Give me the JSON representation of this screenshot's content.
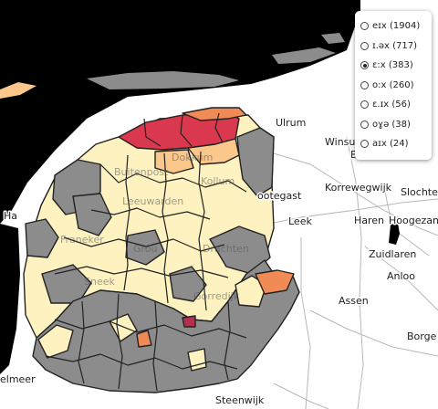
{
  "legend": {
    "items": [
      {
        "label": "eɪx (1904)",
        "checked": false
      },
      {
        "label": "ɪ.əx (717)",
        "checked": false
      },
      {
        "label": "ɛ:x (383)",
        "checked": true
      },
      {
        "label": "o:x (260)",
        "checked": false
      },
      {
        "label": "ɛ.ɪx (56)",
        "checked": false
      },
      {
        "label": "oɣə (38)",
        "checked": false
      },
      {
        "label": "aɪx (24)",
        "checked": false
      }
    ]
  },
  "places": {
    "ulrum": "Ulrum",
    "winsum": "Winsum",
    "bedum_partial": "B",
    "korrewegwijk": "Korrewegwijk",
    "slochteren_partial": "Slochte",
    "grootegast_partial": "ootegast",
    "leek": "Leek",
    "haren": "Haren",
    "hoogezand_partial": "Hoogezan",
    "zuidlaren": "Zuidlaren",
    "harlingen_partial": "Ha",
    "anloo": "Anloo",
    "assen": "Assen",
    "borger_partial": "Borge",
    "heerenveen_partial": "elmeer",
    "steenwijk_partial": "Steenwijk",
    "faded_1": "Dokkum",
    "faded_2": "Leeuwarden",
    "faded_3": "Drachten",
    "faded_4": "Franeker",
    "faded_5": "Grou",
    "faded_6": "Sneek",
    "faded_7": "Gorredijk",
    "faded_8": "Kollum",
    "faded_9": "Buitenpost"
  },
  "colors": {
    "sea": "#000000",
    "land": "#ffffff",
    "highest": "#d9384f",
    "high": "#f08b55",
    "mid": "#fbc78a",
    "low": "#fef2c0",
    "no_data": "#8c8c8c"
  }
}
